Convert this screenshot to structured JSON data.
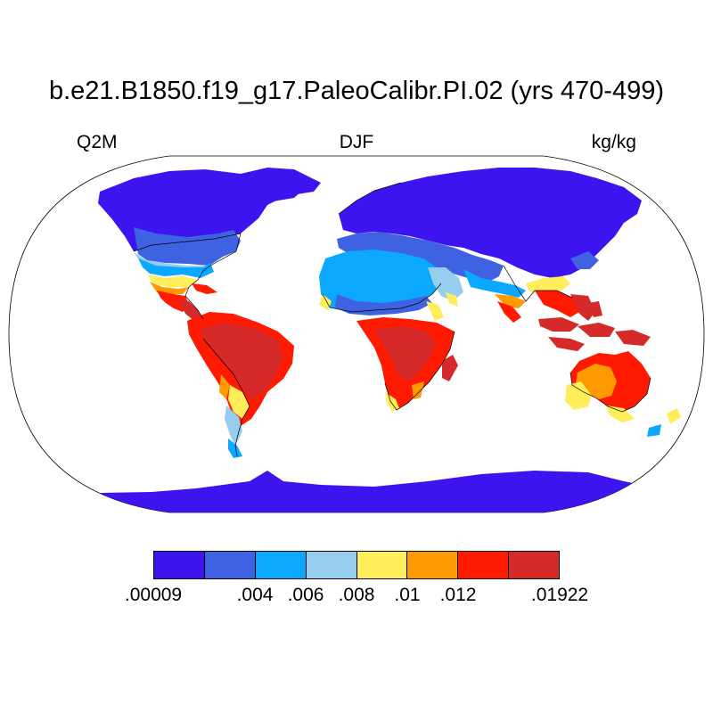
{
  "title": "b.e21.B1850.f19_g17.PaleoCalibr.PI.02 (yrs 470-499)",
  "left_label": "Q2M",
  "center_label": "DJF",
  "right_label": "kg/kg",
  "colorbar": {
    "colors": [
      "#3d14f0",
      "#3f62e2",
      "#0aa8ff",
      "#97cdef",
      "#ffee5a",
      "#ff9a00",
      "#ff1a00",
      "#d62a2a"
    ],
    "labels": [
      ".00009",
      ".004",
      ".006",
      ".008",
      ".01",
      ".012",
      ".01922"
    ]
  }
}
